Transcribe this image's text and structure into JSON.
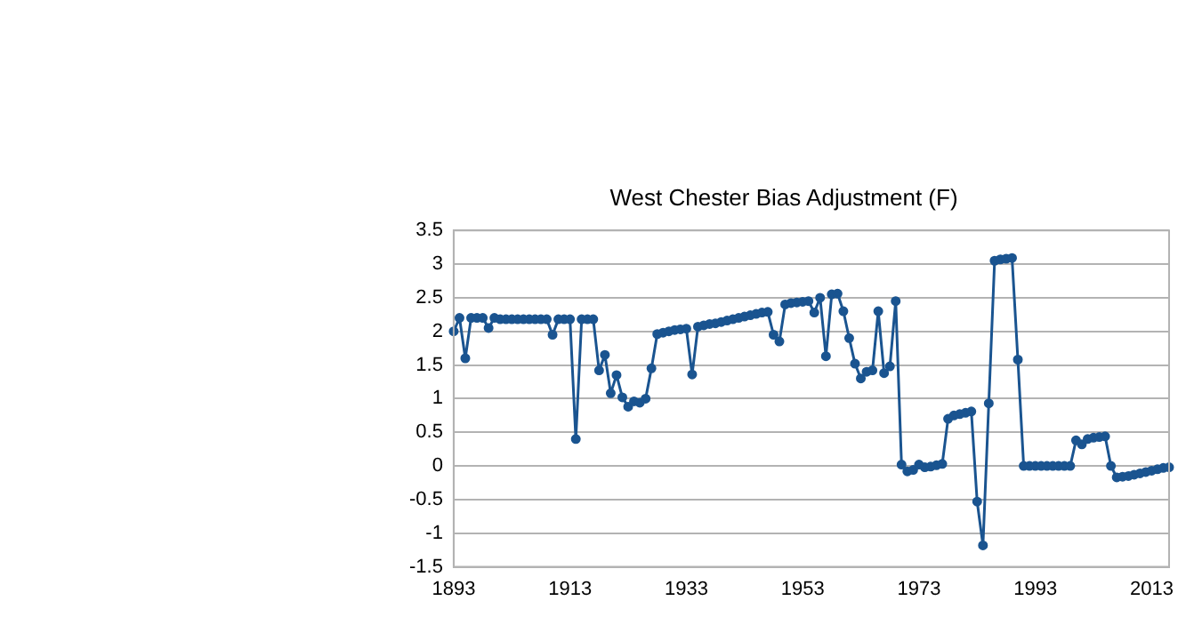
{
  "chart_data": {
    "type": "line",
    "title": "West Chester Bias Adjustment (F)",
    "categories": [
      "1893",
      null,
      null,
      null,
      null,
      null,
      null,
      null,
      null,
      null,
      null,
      null,
      null,
      null,
      null,
      null,
      null,
      null,
      null,
      null,
      "1913",
      null,
      null,
      null,
      null,
      null,
      null,
      null,
      null,
      null,
      null,
      null,
      null,
      null,
      null,
      null,
      null,
      null,
      null,
      null,
      "1933",
      null,
      null,
      null,
      null,
      null,
      null,
      null,
      null,
      null,
      null,
      null,
      null,
      null,
      null,
      null,
      null,
      null,
      null,
      null,
      "1953",
      null,
      null,
      null,
      null,
      null,
      null,
      null,
      null,
      null,
      null,
      null,
      null,
      null,
      null,
      null,
      null,
      null,
      null,
      null,
      "1973",
      null,
      null,
      null,
      null,
      null,
      null,
      null,
      null,
      null,
      null,
      null,
      null,
      null,
      null,
      null,
      null,
      null,
      null,
      null,
      "1993",
      null,
      null,
      null,
      null,
      null,
      null,
      null,
      null,
      null,
      null,
      null,
      null,
      null,
      null,
      null,
      null,
      null,
      null,
      null,
      "2013",
      null,
      null,
      null
    ],
    "series": [
      {
        "color": "#1a5490",
        "values": [
          2.0,
          2.2,
          1.6,
          2.2,
          2.2,
          2.2,
          2.05,
          2.2,
          2.18,
          2.18,
          2.18,
          2.18,
          2.18,
          2.18,
          2.18,
          2.18,
          2.18,
          1.95,
          2.18,
          2.18,
          2.18,
          0.4,
          2.18,
          2.18,
          2.18,
          1.42,
          1.65,
          1.08,
          1.35,
          1.02,
          0.88,
          0.96,
          0.94,
          1.0,
          1.45,
          1.96,
          1.98,
          2.0,
          2.02,
          2.03,
          2.04,
          1.36,
          2.07,
          2.09,
          2.11,
          2.12,
          2.14,
          2.16,
          2.18,
          2.2,
          2.22,
          2.24,
          2.26,
          2.28,
          2.29,
          1.95,
          1.85,
          2.4,
          2.42,
          2.43,
          2.44,
          2.45,
          2.28,
          2.5,
          1.63,
          2.55,
          2.56,
          2.3,
          1.9,
          1.52,
          1.3,
          1.4,
          1.42,
          2.3,
          1.38,
          1.48,
          2.45,
          0.02,
          -0.08,
          -0.06,
          0.02,
          -0.02,
          -0.01,
          0.01,
          0.03,
          0.7,
          0.75,
          0.77,
          0.79,
          0.81,
          -0.53,
          -1.18,
          0.93,
          3.05,
          3.07,
          3.08,
          3.09,
          1.58,
          0.0,
          0.0,
          0.0,
          0.0,
          0.0,
          0.0,
          0.0,
          0.0,
          0.0,
          0.38,
          0.32,
          0.4,
          0.42,
          0.43,
          0.44,
          0.0,
          -0.17,
          -0.16,
          -0.15,
          -0.13,
          -0.11,
          -0.09,
          -0.07,
          -0.05,
          -0.03,
          -0.02
        ]
      }
    ],
    "ylim": [
      -1.5,
      3.5
    ],
    "yticks": [
      -1.5,
      -1,
      -0.5,
      0,
      0.5,
      1,
      1.5,
      2,
      2.5,
      3,
      3.5
    ],
    "grid": "y",
    "legend": false,
    "marker": "circle",
    "line_style": "solid"
  }
}
